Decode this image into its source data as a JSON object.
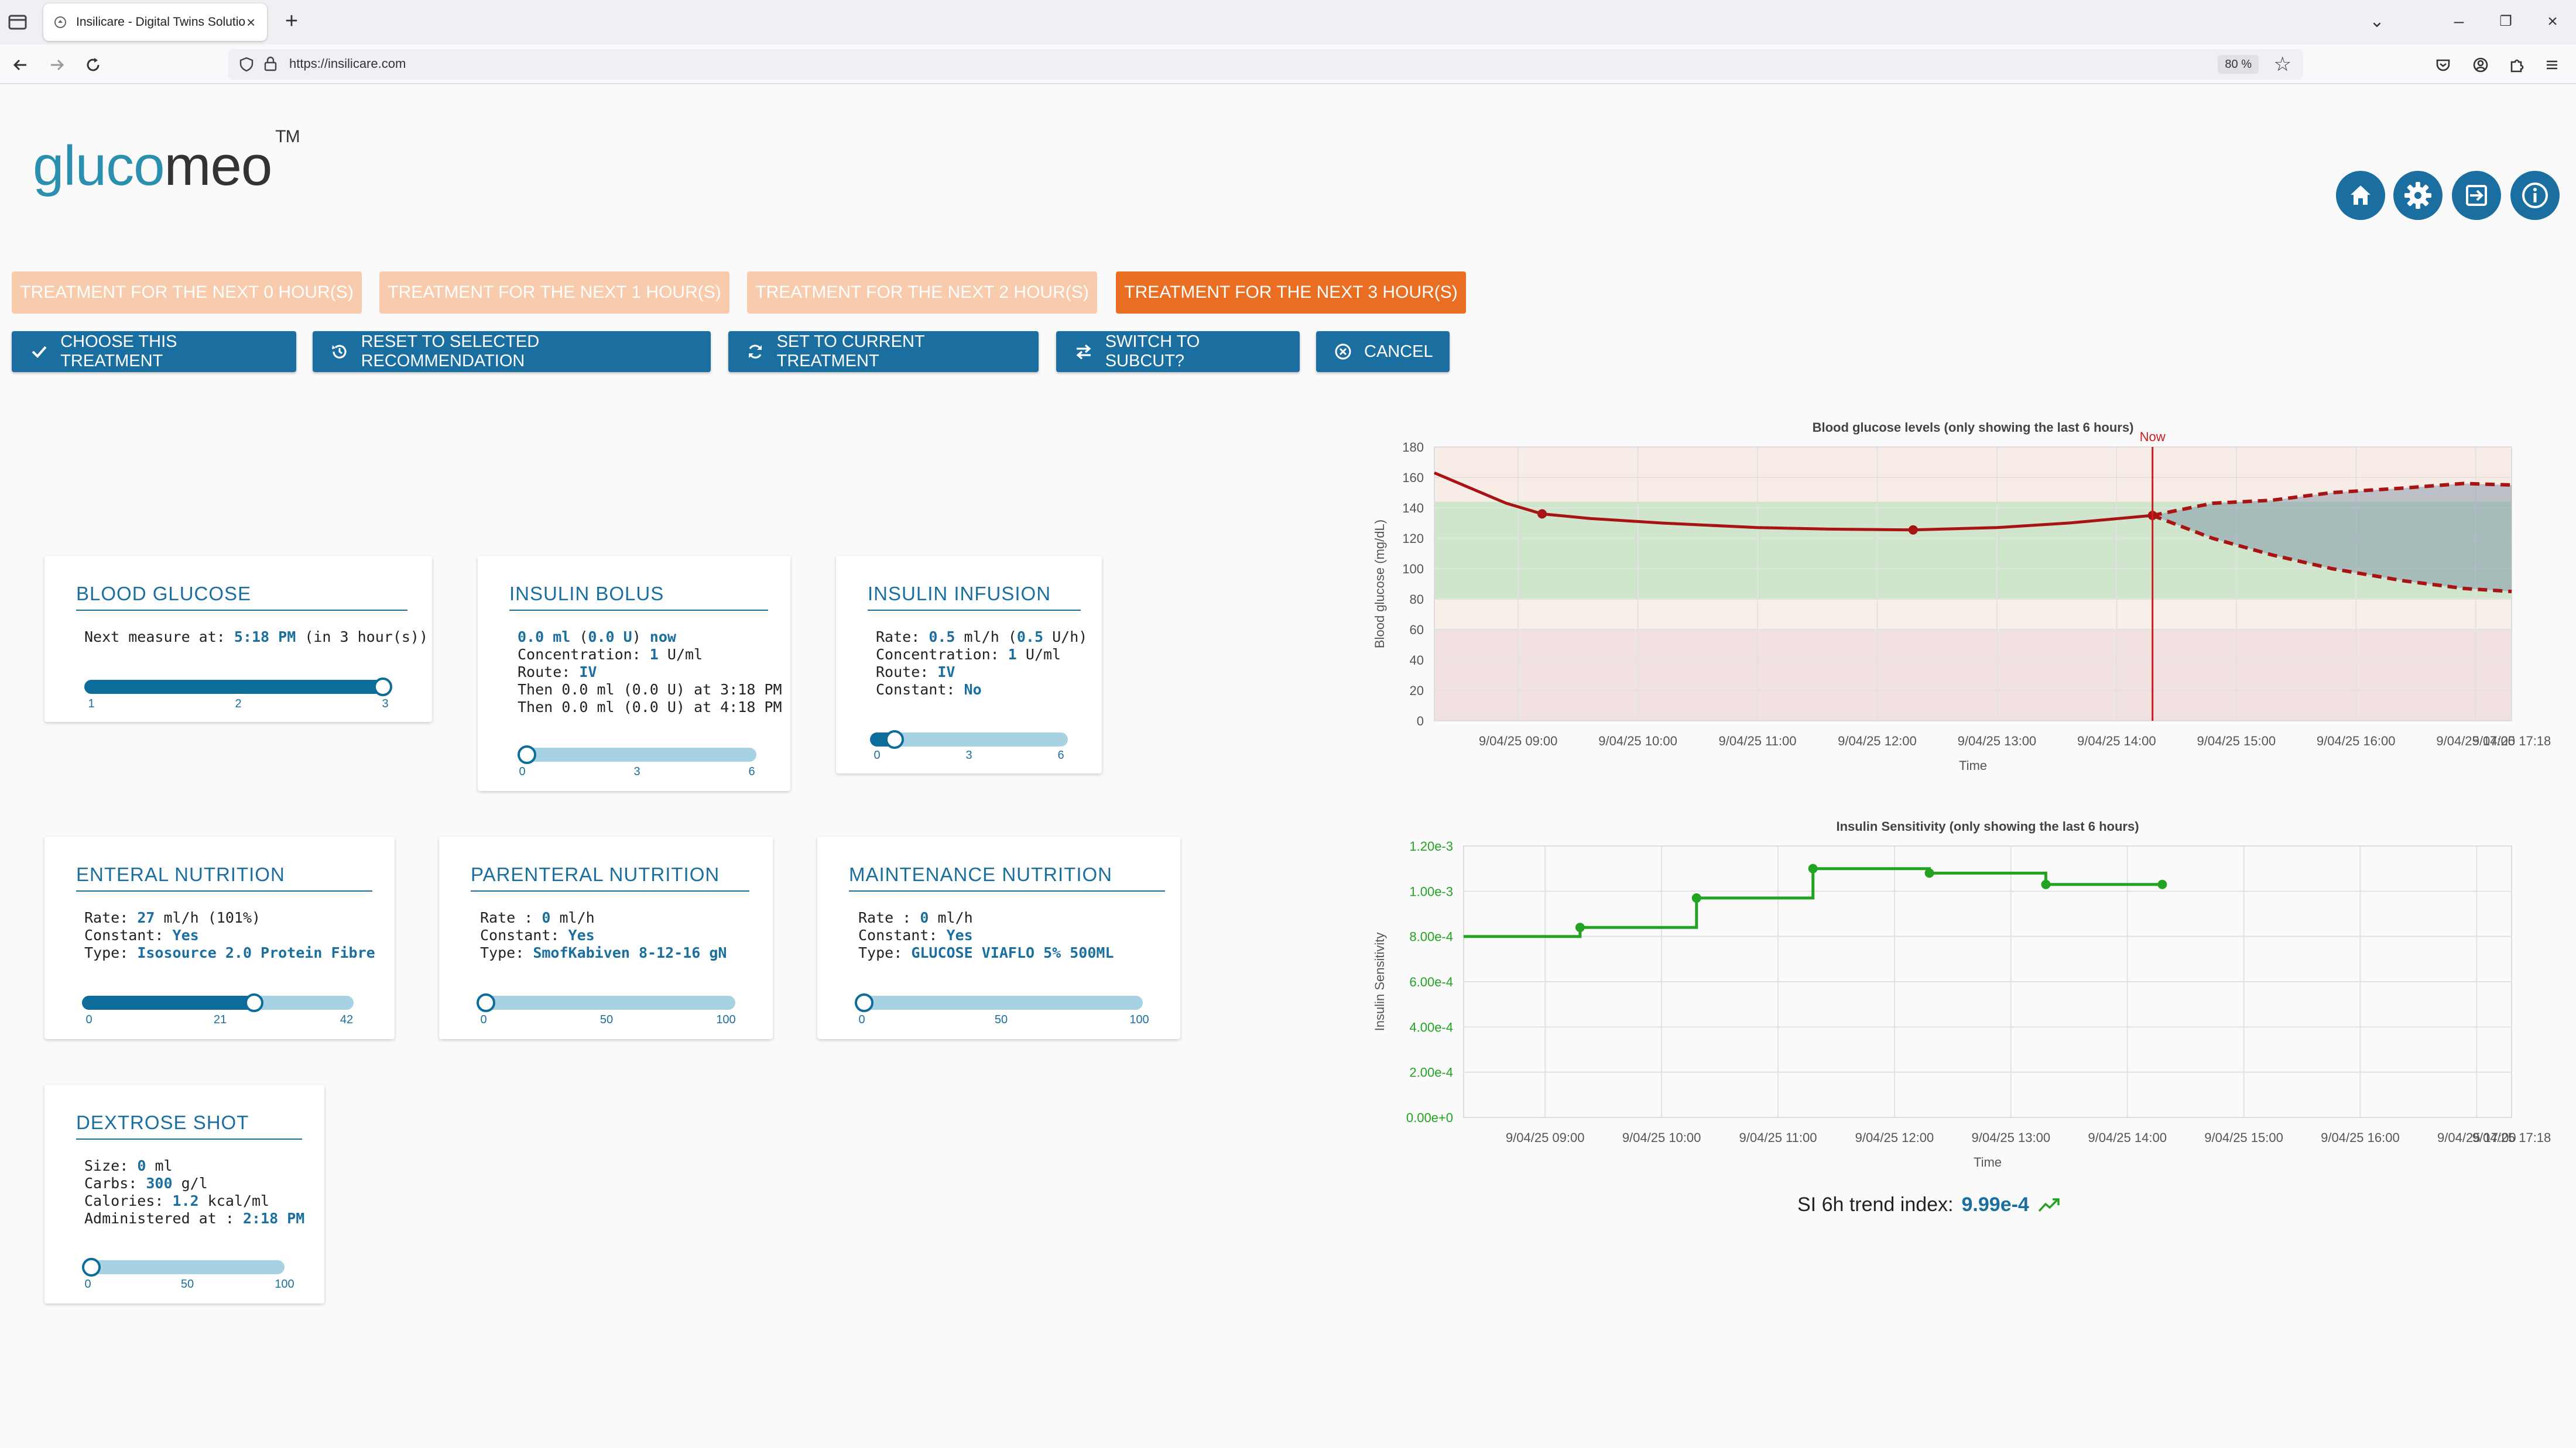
{
  "browser": {
    "tab_title": "Insilicare - Digital Twins Solutio",
    "url": "https://insilicare.com",
    "zoom": "80 %"
  },
  "header": {
    "logo_part1": "gluco",
    "logo_part2": "meo",
    "logo_tm": "TM"
  },
  "horizon_tabs": [
    {
      "label": "TREATMENT FOR THE NEXT 0 HOUR(S)",
      "active": false
    },
    {
      "label": "TREATMENT FOR THE NEXT 1 HOUR(S)",
      "active": false
    },
    {
      "label": "TREATMENT FOR THE NEXT 2 HOUR(S)",
      "active": false
    },
    {
      "label": "TREATMENT FOR THE NEXT 3 HOUR(S)",
      "active": true
    }
  ],
  "actions": {
    "choose": "CHOOSE THIS TREATMENT",
    "reset": "RESET TO SELECTED RECOMMENDATION",
    "set_current": "SET TO CURRENT TREATMENT",
    "switch": "SWITCH TO SUBCUT?",
    "cancel": "CANCEL"
  },
  "cards": {
    "blood_glucose": {
      "title": "BLOOD GLUCOSE",
      "next_label": "Next measure at:",
      "next_time": "5:18 PM",
      "next_suffix": "(in 3 hour(s))",
      "slider": {
        "min": "1",
        "mid": "2",
        "max": "3",
        "value": 3,
        "range": [
          1,
          3
        ]
      }
    },
    "insulin_bolus": {
      "title": "INSULIN BOLUS",
      "dose_ml": "0.0 ml",
      "dose_u": "0.0 U",
      "dose_when": "now",
      "conc_label": "Concentration:",
      "conc_value": "1",
      "conc_unit": "U/ml",
      "route_label": "Route:",
      "route_value": "IV",
      "then1": "Then 0.0 ml (0.0 U) at 3:18 PM",
      "then2": "Then 0.0 ml (0.0 U) at 4:18 PM",
      "slider": {
        "min": "0",
        "mid": "3",
        "max": "6",
        "value": 0,
        "range": [
          0,
          6
        ]
      }
    },
    "insulin_infusion": {
      "title": "INSULIN INFUSION",
      "rate_label": "Rate:",
      "rate_value": "0.5",
      "rate_unit": "ml/h",
      "rate_u": "0.5",
      "rate_u_unit": "U/h",
      "conc_label": "Concentration:",
      "conc_value": "1",
      "conc_unit": "U/ml",
      "route_label": "Route:",
      "route_value": "IV",
      "const_label": "Constant:",
      "const_value": "No",
      "slider": {
        "min": "0",
        "mid": "3",
        "max": "6",
        "value": 0.5,
        "range": [
          0,
          6
        ]
      }
    },
    "enteral": {
      "title": "ENTERAL NUTRITION",
      "rate_label": "Rate:",
      "rate_value": "27",
      "rate_unit": "ml/h (101%)",
      "const_label": "Constant:",
      "const_value": "Yes",
      "type_label": "Type:",
      "type_value": "Isosource 2.0 Protein Fibre",
      "slider": {
        "min": "0",
        "mid": "21",
        "max": "42",
        "value": 27,
        "range": [
          0,
          42
        ]
      }
    },
    "parenteral": {
      "title": "PARENTERAL NUTRITION",
      "rate_label": "Rate :",
      "rate_value": "0",
      "rate_unit": "ml/h",
      "const_label": "Constant:",
      "const_value": "Yes",
      "type_label": "Type:",
      "type_value": "SmofKabiven 8-12-16 gN",
      "slider": {
        "min": "0",
        "mid": "50",
        "max": "100",
        "value": 0,
        "range": [
          0,
          100
        ]
      }
    },
    "maintenance": {
      "title": "MAINTENANCE NUTRITION",
      "rate_label": "Rate :",
      "rate_value": "0",
      "rate_unit": "ml/h",
      "const_label": "Constant:",
      "const_value": "Yes",
      "type_label": "Type:",
      "type_value": "GLUCOSE VIAFLO 5% 500ML",
      "slider": {
        "min": "0",
        "mid": "50",
        "max": "100",
        "value": 0,
        "range": [
          0,
          100
        ]
      }
    },
    "dextrose": {
      "title": "DEXTROSE SHOT",
      "size_label": "Size:",
      "size_value": "0",
      "size_unit": "ml",
      "carbs_label": "Carbs:",
      "carbs_value": "300",
      "carbs_unit": "g/l",
      "cal_label": "Calories:",
      "cal_value": "1.2",
      "cal_unit": "kcal/ml",
      "admin_label": "Administered at :",
      "admin_value": "2:18 PM",
      "slider": {
        "min": "0",
        "mid": "50",
        "max": "100",
        "value": 0,
        "range": [
          0,
          100
        ]
      }
    }
  },
  "trend": {
    "label": "SI 6h trend index:",
    "value": "9.99e-4"
  },
  "chart_data": [
    {
      "type": "line",
      "title": "Blood glucose levels (only showing the last 6 hours)",
      "xlabel": "Time",
      "ylabel": "Blood glucose (mg/dL)",
      "ylim": [
        0,
        180
      ],
      "yticks": [
        "0",
        "20",
        "40",
        "60",
        "80",
        "100",
        "120",
        "140",
        "160",
        "180"
      ],
      "xlim_hours": [
        8.3,
        17.3
      ],
      "xticks": [
        {
          "h": 9,
          "label": "9/04/25 09:00"
        },
        {
          "h": 10,
          "label": "9/04/25 10:00"
        },
        {
          "h": 11,
          "label": "9/04/25 11:00"
        },
        {
          "h": 12,
          "label": "9/04/25 12:00"
        },
        {
          "h": 13,
          "label": "9/04/25 13:00"
        },
        {
          "h": 14,
          "label": "9/04/25 14:00"
        },
        {
          "h": 15,
          "label": "9/04/25 15:00"
        },
        {
          "h": 16,
          "label": "9/04/25 16:00"
        },
        {
          "h": 17,
          "label": "9/04/25 17:00"
        },
        {
          "h": 17.3,
          "label": "9/04/25 17:18"
        }
      ],
      "now": {
        "h": 14.3,
        "label": "Now"
      },
      "target_band": [
        80,
        144
      ],
      "measured": [
        [
          8.3,
          163
        ],
        [
          8.6,
          153
        ],
        [
          8.9,
          143
        ],
        [
          9.2,
          136
        ],
        [
          9.6,
          133
        ],
        [
          10.2,
          130
        ],
        [
          11,
          127
        ],
        [
          11.6,
          126
        ],
        [
          12.3,
          125.5
        ],
        [
          13,
          127
        ],
        [
          13.6,
          130
        ],
        [
          14.3,
          135
        ]
      ],
      "measured_points": [
        [
          9.2,
          136
        ],
        [
          12.3,
          125.5
        ],
        [
          14.3,
          135
        ]
      ],
      "forecast_upper": [
        [
          14.3,
          135
        ],
        [
          14.8,
          143
        ],
        [
          15.3,
          145
        ],
        [
          15.8,
          150
        ],
        [
          16.4,
          153
        ],
        [
          16.9,
          156
        ],
        [
          17.3,
          155
        ]
      ],
      "forecast_lower": [
        [
          14.3,
          135
        ],
        [
          14.8,
          120
        ],
        [
          15.3,
          109
        ],
        [
          15.8,
          100
        ],
        [
          16.4,
          92
        ],
        [
          16.9,
          87
        ],
        [
          17.3,
          85
        ]
      ]
    },
    {
      "type": "line",
      "title": "Insulin Sensitivity (only showing the last 6 hours)",
      "xlabel": "Time",
      "ylabel": "Insulin Sensitivity",
      "ylim": [
        0,
        0.0012
      ],
      "yticks": [
        "0.00e+0",
        "2.00e-4",
        "4.00e-4",
        "6.00e-4",
        "8.00e-4",
        "1.00e-3",
        "1.20e-3"
      ],
      "xlim_hours": [
        8.3,
        17.3
      ],
      "xticks": [
        {
          "h": 9,
          "label": "9/04/25 09:00"
        },
        {
          "h": 10,
          "label": "9/04/25 10:00"
        },
        {
          "h": 11,
          "label": "9/04/25 11:00"
        },
        {
          "h": 12,
          "label": "9/04/25 12:00"
        },
        {
          "h": 13,
          "label": "9/04/25 13:00"
        },
        {
          "h": 14,
          "label": "9/04/25 14:00"
        },
        {
          "h": 15,
          "label": "9/04/25 15:00"
        },
        {
          "h": 16,
          "label": "9/04/25 16:00"
        },
        {
          "h": 17,
          "label": "9/04/25 17:00"
        },
        {
          "h": 17.3,
          "label": "9/04/25 17:18"
        }
      ],
      "steps": [
        [
          8.3,
          0.0008
        ],
        [
          9.3,
          0.00084
        ],
        [
          10.3,
          0.00097
        ],
        [
          11.3,
          0.0011
        ],
        [
          12.3,
          0.00108
        ],
        [
          13.3,
          0.00103
        ],
        [
          14.3,
          0.00103
        ]
      ],
      "points": [
        [
          9.3,
          0.00084
        ],
        [
          10.3,
          0.00097
        ],
        [
          11.3,
          0.0011
        ],
        [
          12.3,
          0.00108
        ],
        [
          13.3,
          0.00103
        ],
        [
          14.3,
          0.00103
        ]
      ]
    }
  ],
  "colors": {
    "primary": "#1a6fa0",
    "accent": "#e96e22",
    "glucose_line": "#a81414",
    "si_line": "#22a322"
  }
}
